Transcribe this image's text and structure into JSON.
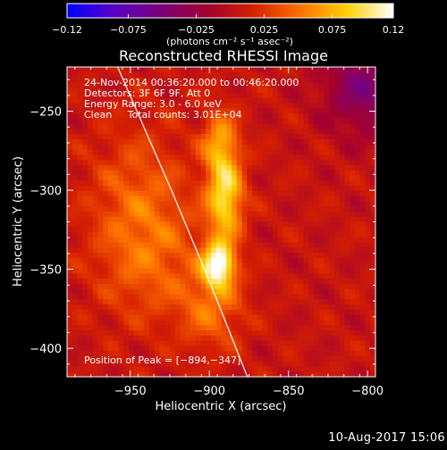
{
  "chart_data": {
    "type": "heatmap",
    "title": "Reconstructed RHESSI Image",
    "xlabel": "Heliocentric X (arcsec)",
    "ylabel": "Heliocentric Y (arcsec)",
    "xlim": [
      -990,
      -795
    ],
    "ylim": [
      -418,
      -222
    ],
    "x_ticks": [
      {
        "value": -950,
        "label": "−950"
      },
      {
        "value": -900,
        "label": "−900"
      },
      {
        "value": -850,
        "label": "−850"
      },
      {
        "value": -800,
        "label": "−800"
      }
    ],
    "y_ticks": [
      {
        "value": -250,
        "label": "−250"
      },
      {
        "value": -300,
        "label": "−300"
      },
      {
        "value": -350,
        "label": "−350"
      },
      {
        "value": -400,
        "label": "−400"
      }
    ],
    "colorbar": {
      "min": -0.12,
      "max": 0.12,
      "unit_label": "(photons cm⁻² s⁻¹ asec⁻²)",
      "ticks": [
        {
          "value": -0.12,
          "label": "−0.12"
        },
        {
          "value": -0.075,
          "label": "−0.075"
        },
        {
          "value": -0.025,
          "label": "−0.025"
        },
        {
          "value": 0.025,
          "label": "0.025"
        },
        {
          "value": 0.075,
          "label": "0.075"
        },
        {
          "value": 0.12,
          "label": "0.12"
        }
      ],
      "colors": [
        "#0000ff",
        "#5a00c8",
        "#7a007a",
        "#a30030",
        "#d62000",
        "#ff7000",
        "#ffd000",
        "#ffffff"
      ]
    },
    "annotations": [
      "24-Nov-2014 00:36:20.000 to 00:46:20.000",
      "Detectors: 3F 6F 9F, Att 0",
      "Energy Range: 3.0 - 6.0 keV",
      "Clean     Total counts: 3.01E+04"
    ],
    "peak": {
      "x": -894,
      "y": -347,
      "label": "Position of Peak = [−894,−347]"
    },
    "limb_line": [
      {
        "x": -958,
        "y": -222
      },
      {
        "x": -924,
        "y": -300
      },
      {
        "x": -901,
        "y": -355
      },
      {
        "x": -876,
        "y": -418
      }
    ],
    "sources": [
      {
        "x": -894,
        "y": -347,
        "sx": 7,
        "sy": 10,
        "amp": 0.11
      },
      {
        "x": -890,
        "y": -305,
        "sx": 8,
        "sy": 18,
        "amp": 0.09
      },
      {
        "x": -893,
        "y": -270,
        "sx": 8,
        "sy": 14,
        "amp": 0.06
      },
      {
        "x": -898,
        "y": -375,
        "sx": 14,
        "sy": 18,
        "amp": 0.04
      },
      {
        "x": -938,
        "y": -345,
        "sx": 24,
        "sy": 28,
        "amp": 0.035
      },
      {
        "x": -945,
        "y": -300,
        "sx": 22,
        "sy": 30,
        "amp": 0.03
      }
    ],
    "grid": false
  },
  "footer": {
    "timestamp": "10-Aug-2017 15:06"
  }
}
